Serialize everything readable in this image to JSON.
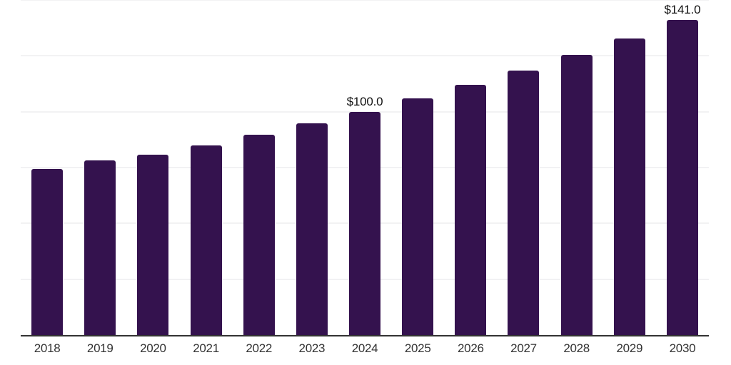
{
  "chart_data": {
    "type": "bar",
    "title": "",
    "xlabel": "",
    "ylabel": "",
    "categories": [
      "2018",
      "2019",
      "2020",
      "2021",
      "2022",
      "2023",
      "2024",
      "2025",
      "2026",
      "2027",
      "2028",
      "2029",
      "2030"
    ],
    "values": [
      74.3,
      78.3,
      80.6,
      84.8,
      89.8,
      94.8,
      100.0,
      105.9,
      112.1,
      118.3,
      125.3,
      132.8,
      141.0
    ],
    "bar_labels": [
      null,
      null,
      null,
      null,
      null,
      null,
      "$100.0",
      null,
      null,
      null,
      null,
      null,
      "$141.0"
    ],
    "ylim": [
      0,
      150
    ],
    "gridline_values": [
      25,
      50,
      75,
      100,
      125,
      150
    ],
    "grid": "horizontal-only",
    "legend": "none",
    "colors": {
      "bar": "#34124e",
      "axis_line": "#333333",
      "gridline": "#f2f2f3",
      "data_label": "#111111",
      "tick_label": "#333333",
      "background": "#ffffff"
    }
  }
}
